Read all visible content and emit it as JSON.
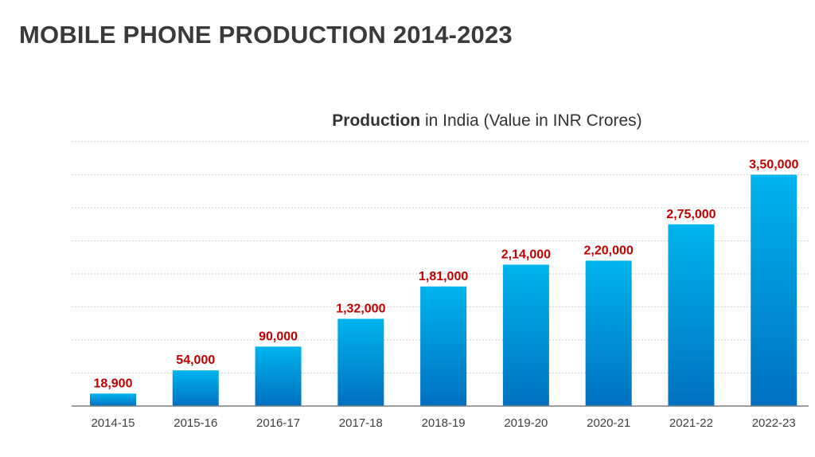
{
  "page": {
    "title": "MOBILE PHONE PRODUCTION 2014-2023"
  },
  "chart_data": {
    "type": "bar",
    "title_bold": "Production",
    "title_rest": " in India (Value in INR Crores)",
    "xlabel": "",
    "ylabel": "",
    "categories": [
      "2014-15",
      "2015-16",
      "2016-17",
      "2017-18",
      "2018-19",
      "2019-20",
      "2020-21",
      "2021-22",
      "2022-23"
    ],
    "values": [
      18900,
      54000,
      90000,
      132000,
      181000,
      214000,
      220000,
      275000,
      350000
    ],
    "value_labels": [
      "18,900",
      "54,000",
      "90,000",
      "1,32,000",
      "1,81,000",
      "2,14,000",
      "2,20,000",
      "2,75,000",
      "3,50,000"
    ],
    "ylim": [
      0,
      400000
    ],
    "grid": true,
    "legend": "none",
    "colors": {
      "bar_top": "#00b4ee",
      "bar_bottom": "#0070c0",
      "value_label": "#c00000",
      "gridline": "#d0d0d0",
      "axis": "#7f7f7f"
    }
  }
}
